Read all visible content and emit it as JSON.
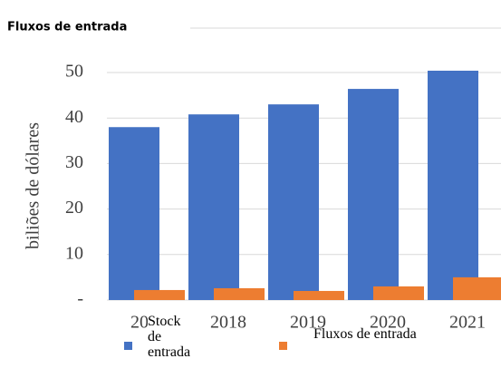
{
  "chart_data": {
    "type": "bar",
    "title": "Fluxos de entrada",
    "ylabel": "biliões de dólares",
    "categories": [
      "2017",
      "2018",
      "2019",
      "2020",
      "2021"
    ],
    "series": [
      {
        "name": "Stock de entrada",
        "color": "#4472c4",
        "values": [
          38.0,
          40.8,
          43.0,
          46.4,
          50.4
        ]
      },
      {
        "name": "Fluxos de entrada",
        "color": "#ed7d31",
        "values": [
          2.2,
          2.6,
          2.0,
          3.0,
          5.0
        ]
      }
    ],
    "ylim": [
      0,
      50
    ],
    "yticks": [
      {
        "value": 0,
        "label": "-"
      },
      10,
      20,
      30,
      40,
      50
    ],
    "grid": true
  }
}
